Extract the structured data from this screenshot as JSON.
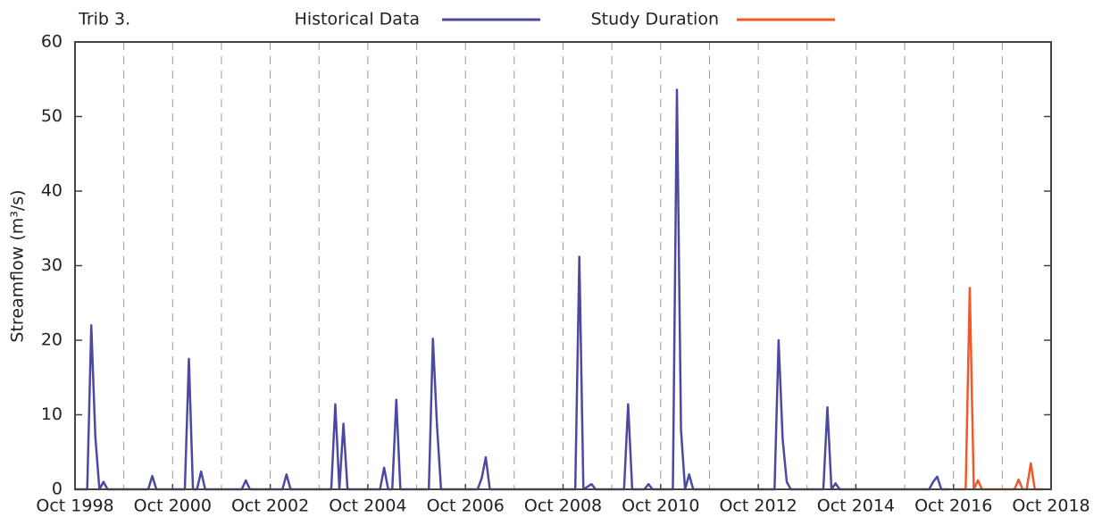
{
  "chart_data": {
    "type": "line",
    "title": "Trib 3.",
    "y_label": "Streamflow (m³/s)",
    "xlim": [
      "1998-10",
      "2018-10"
    ],
    "xticks": [
      {
        "value": "1998-10",
        "label": "Oct 1998"
      },
      {
        "value": "2000-10",
        "label": "Oct 2000"
      },
      {
        "value": "2002-10",
        "label": "Oct 2002"
      },
      {
        "value": "2004-10",
        "label": "Oct 2004"
      },
      {
        "value": "2006-10",
        "label": "Oct 2006"
      },
      {
        "value": "2008-10",
        "label": "Oct 2008"
      },
      {
        "value": "2010-10",
        "label": "Oct 2010"
      },
      {
        "value": "2012-10",
        "label": "Oct 2012"
      },
      {
        "value": "2014-10",
        "label": "Oct 2014"
      },
      {
        "value": "2016-10",
        "label": "Oct 2016"
      },
      {
        "value": "2018-10",
        "label": "Oct 2018"
      }
    ],
    "x_minor_ticks": [
      "1999-10",
      "2001-10",
      "2003-10",
      "2005-10",
      "2007-10",
      "2009-10",
      "2011-10",
      "2013-10",
      "2015-10",
      "2017-10"
    ],
    "ylim": [
      0,
      60
    ],
    "yticks": [
      0,
      10,
      20,
      30,
      40,
      50,
      60
    ],
    "grid": true,
    "series": [
      {
        "name": "Historical Data",
        "color": "#4b4aa0",
        "x": [
          "1998-10",
          "1999-01",
          "1999-02",
          "1999-03",
          "1999-04",
          "1999-05",
          "1999-06",
          "2000-04",
          "2000-05",
          "2000-06",
          "2001-01",
          "2001-02",
          "2001-03",
          "2001-04",
          "2001-05",
          "2001-06",
          "2002-03",
          "2002-04",
          "2002-05",
          "2003-01",
          "2003-02",
          "2003-03",
          "2004-01",
          "2004-02",
          "2004-03",
          "2004-04",
          "2004-05",
          "2005-01",
          "2005-02",
          "2005-03",
          "2005-04",
          "2005-05",
          "2005-06",
          "2006-01",
          "2006-02",
          "2006-03",
          "2006-04",
          "2007-01",
          "2007-02",
          "2007-03",
          "2007-04",
          "2009-01",
          "2009-02",
          "2009-03",
          "2009-05",
          "2009-06",
          "2010-01",
          "2010-02",
          "2010-03",
          "2010-06",
          "2010-07",
          "2010-08",
          "2011-01",
          "2011-02",
          "2011-03",
          "2011-04",
          "2011-05",
          "2011-06",
          "2013-02",
          "2013-03",
          "2013-04",
          "2013-05",
          "2013-06",
          "2014-02",
          "2014-03",
          "2014-04",
          "2014-05",
          "2014-06",
          "2016-04",
          "2016-05",
          "2016-06",
          "2016-07",
          "2016-09"
        ],
        "values": [
          0,
          0,
          22,
          7,
          0,
          1,
          0,
          0,
          1.8,
          0,
          0,
          17.5,
          0,
          0,
          2.4,
          0,
          0,
          1.2,
          0,
          0,
          2,
          0,
          0,
          11.4,
          0,
          8.8,
          0,
          0,
          2.9,
          0,
          0,
          12,
          0,
          0,
          20.2,
          8.6,
          0,
          0,
          1.5,
          4.3,
          0,
          0,
          31.2,
          0,
          0.7,
          0,
          0,
          11.4,
          0,
          0,
          0.7,
          0,
          0,
          53.6,
          8,
          0,
          2,
          0,
          0,
          20,
          6.7,
          1,
          0,
          0,
          11,
          0,
          0.8,
          0,
          0,
          1,
          1.7,
          0,
          0
        ]
      },
      {
        "name": "Study Duration",
        "color": "#f05a2a",
        "x": [
          "2016-10",
          "2017-01",
          "2017-02",
          "2017-03",
          "2017-04",
          "2017-05",
          "2018-01",
          "2018-02",
          "2018-03",
          "2018-04",
          "2018-05",
          "2018-06",
          "2018-08"
        ],
        "values": [
          0,
          0,
          27,
          0,
          1.2,
          0,
          0,
          1.3,
          0,
          0,
          3.5,
          0,
          0
        ]
      }
    ]
  }
}
